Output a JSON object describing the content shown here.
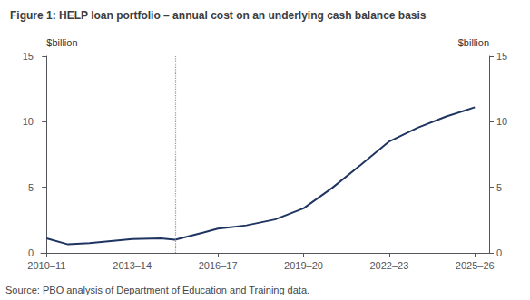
{
  "chart_data": {
    "type": "line",
    "title": "Figure 1: HELP loan portfolio – annual cost on an underlying cash balance basis",
    "ylabel": "$billion",
    "y2label": "$billion",
    "annotation": "Source: PBO analysis of Department of Education and Training data.",
    "x": [
      0,
      0.75,
      1.5,
      3,
      4,
      4.5,
      5.5,
      6,
      7,
      8,
      9,
      10,
      11,
      12,
      13,
      14,
      15
    ],
    "series": [
      {
        "color": "#1f3461",
        "values": [
          1.1,
          0.65,
          0.75,
          1.05,
          1.1,
          1.0,
          1.55,
          1.85,
          2.1,
          2.55,
          3.4,
          4.95,
          6.7,
          8.5,
          9.55,
          10.4,
          11.1
        ]
      }
    ],
    "xlim": [
      -0.2,
      15.5
    ],
    "xticks": [
      {
        "value": 0,
        "label": "2010–11"
      },
      {
        "value": 3,
        "label": "2013–14"
      },
      {
        "value": 6,
        "label": "2016–17"
      },
      {
        "value": 9,
        "label": "2019–20"
      },
      {
        "value": 12,
        "label": "2022–23"
      },
      {
        "value": 15,
        "label": "2025–26"
      }
    ],
    "ylim": [
      0,
      15
    ],
    "yticks": [
      0,
      5,
      10,
      15
    ],
    "y2lim": [
      0,
      15
    ],
    "y2ticks": [
      0,
      5,
      10,
      15
    ],
    "vline_x": 4.5,
    "grid": false
  }
}
